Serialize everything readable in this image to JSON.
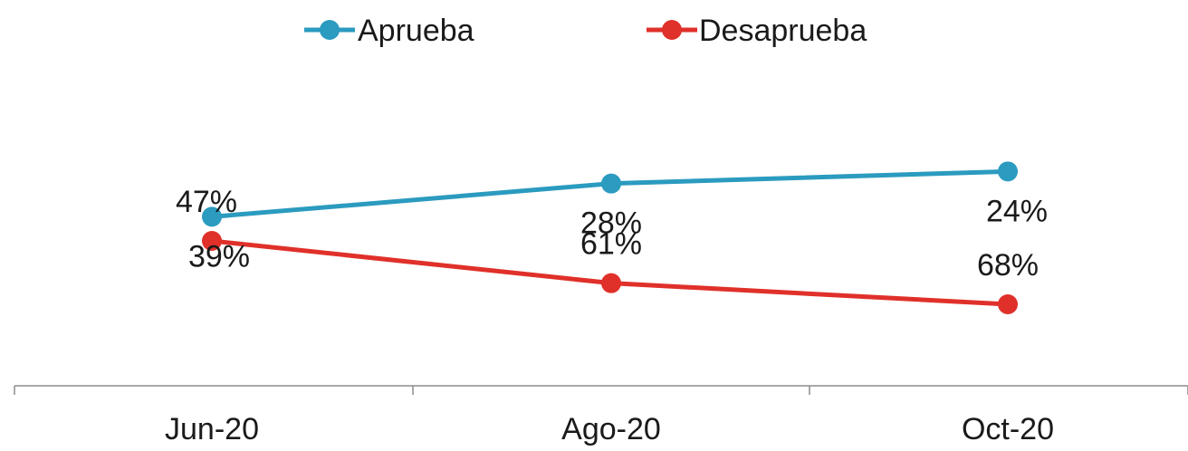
{
  "chart_data": {
    "type": "line",
    "title": "",
    "xlabel": "",
    "ylabel": "",
    "categories": [
      "Jun-20",
      "Ago-20",
      "Oct-20"
    ],
    "series": [
      {
        "name": "Aprueba",
        "color": "#2b9bbf",
        "values": [
          39,
          28,
          24
        ],
        "labels": [
          "39%",
          "28%",
          "24%"
        ],
        "label_position": "below"
      },
      {
        "name": "Desaprueba",
        "color": "#e0302a",
        "values": [
          47,
          61,
          68
        ],
        "labels": [
          "47%",
          "61%",
          "68%"
        ],
        "label_position": "above"
      }
    ],
    "legend": "top-center",
    "grid": false,
    "y_axis_visible": false,
    "value_format": "percent"
  }
}
